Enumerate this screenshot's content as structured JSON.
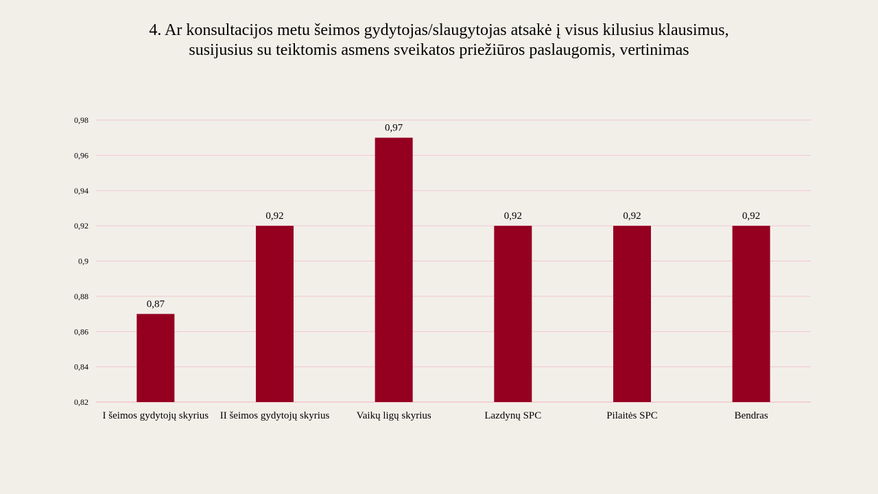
{
  "slide": {
    "title_line1": "4. Ar konsultacijos metu šeimos gydytojas/slaugytojas atsakė į visus kilusius klausimus,",
    "title_line2": "susijusius su teiktomis asmens sveikatos priežiūros paslaugomis, vertinimas"
  },
  "chart_data": {
    "type": "bar",
    "title": "4. Ar konsultacijos metu šeimos gydytojas/slaugytojas atsakė į visus kilusius klausimus, susijusius su teiktomis asmens sveikatos priežiūros paslaugomis, vertinimas",
    "categories": [
      "I šeimos gydytojų skyrius",
      "II šeimos gydytojų skyrius",
      "Vaikų ligų skyrius",
      "Lazdynų SPC",
      "Pilaitės SPC",
      "Bendras"
    ],
    "values": [
      0.87,
      0.92,
      0.97,
      0.92,
      0.92,
      0.92
    ],
    "value_labels": [
      "0,87",
      "0,92",
      "0,97",
      "0,92",
      "0,92",
      "0,92"
    ],
    "ylim": [
      0.82,
      0.98
    ],
    "yticks": [
      0.82,
      0.84,
      0.86,
      0.88,
      0.9,
      0.92,
      0.94,
      0.96,
      0.98
    ],
    "ytick_labels": [
      "0,82",
      "0,84",
      "0,86",
      "0,88",
      "0,9",
      "0,92",
      "0,94",
      "0,96",
      "0,98"
    ],
    "grid": true,
    "legend": "none",
    "colors": {
      "bar": "#950020",
      "grid": "#f3c6cf",
      "axis": "#f1b3bf",
      "background": "#f2efe9"
    }
  }
}
